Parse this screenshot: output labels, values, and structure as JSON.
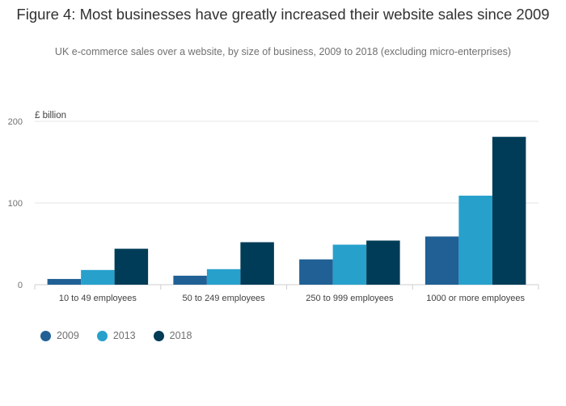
{
  "chart_data": {
    "type": "bar",
    "title": "Figure 4: Most businesses have greatly increased their website sales since 2009",
    "subtitle": "UK e-commerce sales over a website, by size of business, 2009 to 2018 (excluding micro-enterprises)",
    "ylabel": "£ billion",
    "xlabel": "",
    "ylim": [
      0,
      200
    ],
    "yticks": [
      0,
      100,
      200
    ],
    "categories": [
      "10 to 49 employees",
      "50 to 249 employees",
      "250 to 999 employees",
      "1000 or more employees"
    ],
    "series": [
      {
        "name": "2009",
        "color": "#206095",
        "values": [
          7,
          11,
          31,
          59
        ]
      },
      {
        "name": "2013",
        "color": "#27a0cc",
        "values": [
          18,
          19,
          49,
          109
        ]
      },
      {
        "name": "2018",
        "color": "#003c57",
        "values": [
          44,
          52,
          54,
          181
        ]
      }
    ],
    "legend_position": "bottom-left",
    "grid": true
  }
}
